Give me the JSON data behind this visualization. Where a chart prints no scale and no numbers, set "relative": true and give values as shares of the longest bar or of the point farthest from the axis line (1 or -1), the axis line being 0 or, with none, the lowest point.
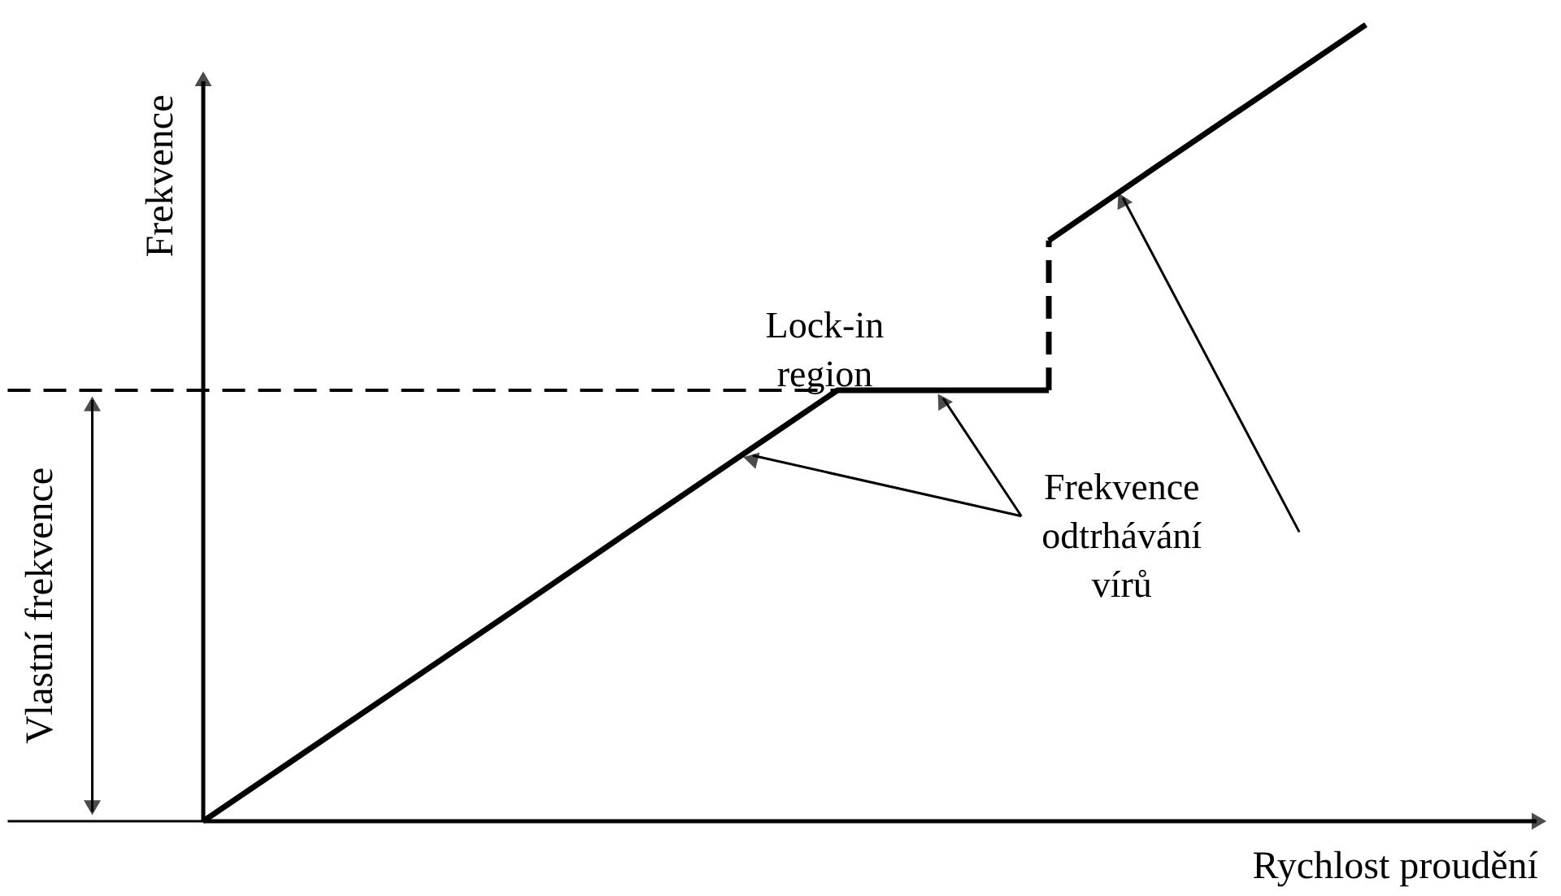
{
  "chart_data": {
    "type": "line",
    "relative": true,
    "ylabel": "Frekvence",
    "xlabel": "Rychlost proudění",
    "marker": "none",
    "line_style": "solid",
    "categories": [
      null,
      null,
      null,
      null,
      null,
      null,
      null,
      null,
      null,
      null,
      null,
      null
    ],
    "series": [
      {
        "color": "#000000",
        "values": [
          0,
          0.09,
          0.18,
          0.27,
          0.361,
          0.451,
          0.541,
          0.541,
          0.541,
          null,
          null,
          null
        ]
      },
      {
        "color": "#000000",
        "values": [
          null,
          null,
          null,
          null,
          null,
          null,
          null,
          null,
          0.729,
          0.82,
          0.91,
          1
        ]
      }
    ],
    "ref_lines": [
      {
        "axis": "y",
        "value": 0.541,
        "label": "Vlastní frekvence",
        "line_style": "dashed",
        "color": "#000000"
      }
    ],
    "annotations": [
      "Lock-in region",
      "Frekvence odtrhávání vírů"
    ]
  }
}
